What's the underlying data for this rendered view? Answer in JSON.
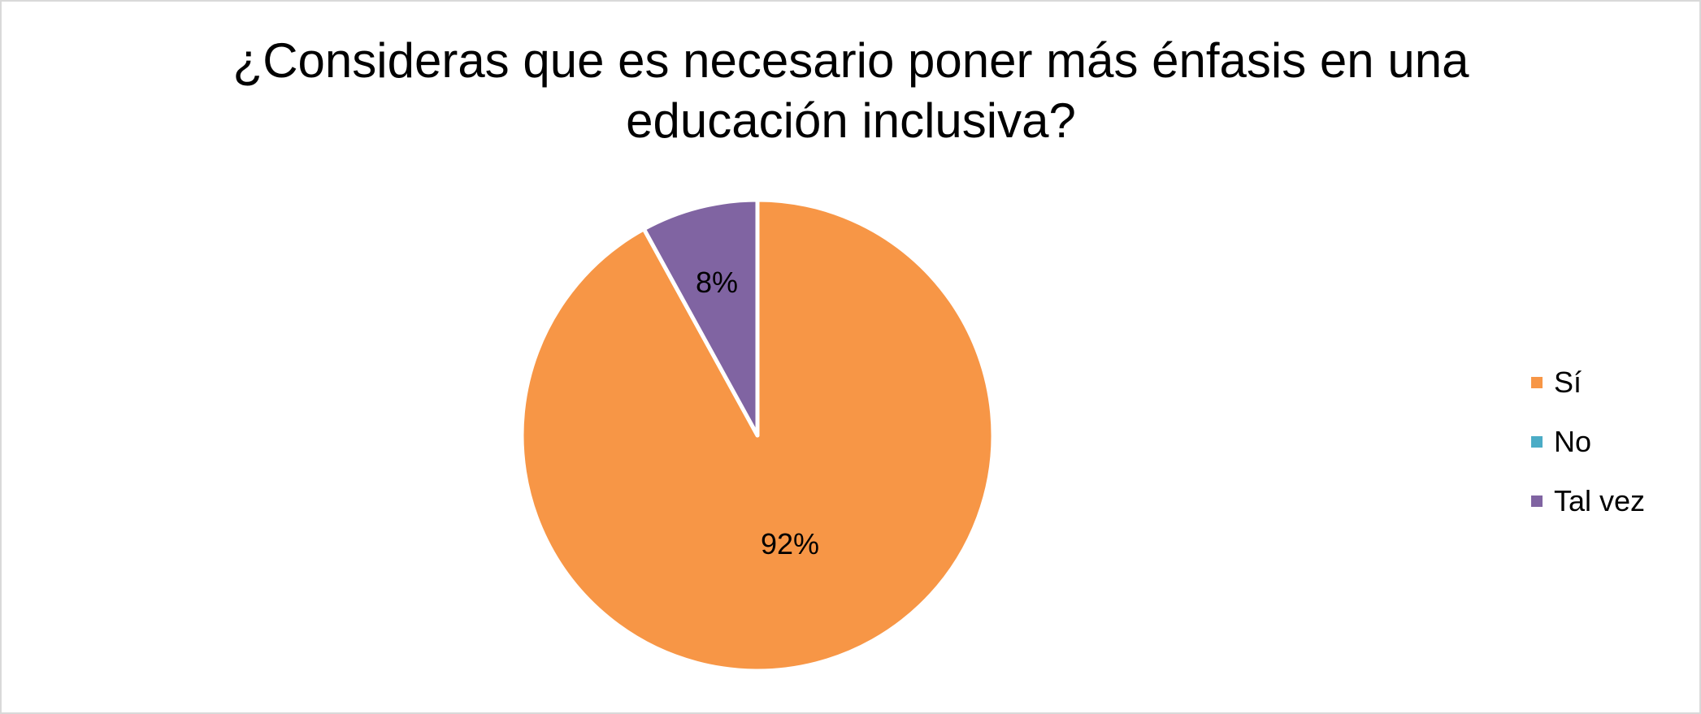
{
  "chart_data": {
    "type": "pie",
    "title": "¿Consideras que es necesario poner más énfasis en una educación inclusiva?",
    "categories": [
      "Sí",
      "No",
      "Tal vez"
    ],
    "values": [
      92,
      0,
      8
    ],
    "value_unit": "%",
    "data_labels": [
      "92%",
      "",
      "8%"
    ],
    "colors": [
      "#F79646",
      "#4BACC6",
      "#8064A2"
    ],
    "legend_position": "right"
  }
}
